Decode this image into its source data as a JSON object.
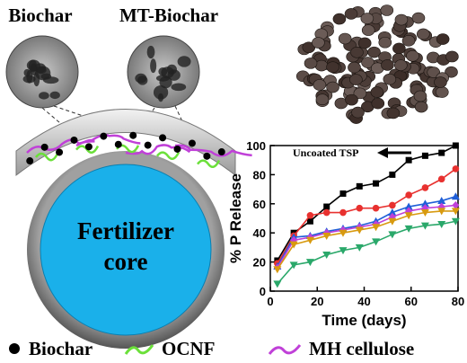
{
  "diagram": {
    "sem_labels": [
      "Biochar",
      "MT-Biochar"
    ],
    "core_label": [
      "Fertilizer",
      "core"
    ],
    "legend": [
      "Biochar",
      "OCNF",
      "MH cellulose"
    ]
  },
  "chart_data": {
    "type": "line",
    "xlabel": "Time (days)",
    "ylabel": "% P Release",
    "annotation": "Uncoated TSP",
    "x": [
      3,
      10,
      17,
      24,
      31,
      38,
      45,
      52,
      59,
      66,
      73,
      79
    ],
    "series": [
      {
        "color": "#000000",
        "marker": "square",
        "values": [
          21,
          40,
          48,
          58,
          67,
          72,
          74,
          80,
          90,
          93,
          95,
          100
        ]
      },
      {
        "color": "#e8312f",
        "marker": "circle",
        "values": [
          19,
          38,
          52,
          54,
          54,
          57,
          57,
          59,
          66,
          71,
          77,
          84
        ]
      },
      {
        "color": "#1f5fd8",
        "marker": "triangle-up",
        "values": [
          17,
          37,
          38,
          41,
          43,
          45,
          48,
          54,
          58,
          60,
          62,
          65
        ]
      },
      {
        "color": "#c040d8",
        "marker": "diamond",
        "values": [
          16,
          35,
          37,
          40,
          42,
          44,
          46,
          51,
          55,
          57,
          58,
          59
        ]
      },
      {
        "color": "#d89a10",
        "marker": "triangle-down",
        "values": [
          15,
          32,
          35,
          38,
          40,
          42,
          44,
          48,
          52,
          54,
          55,
          55
        ]
      },
      {
        "color": "#2aa86a",
        "marker": "triangle-down",
        "values": [
          5,
          18,
          20,
          25,
          28,
          30,
          34,
          39,
          43,
          45,
          46,
          48
        ]
      }
    ],
    "xlim": [
      0,
      80
    ],
    "ylim": [
      0,
      100
    ],
    "xticks": [
      0,
      20,
      40,
      60,
      80
    ],
    "yticks": [
      0,
      20,
      40,
      60,
      80,
      100
    ]
  }
}
